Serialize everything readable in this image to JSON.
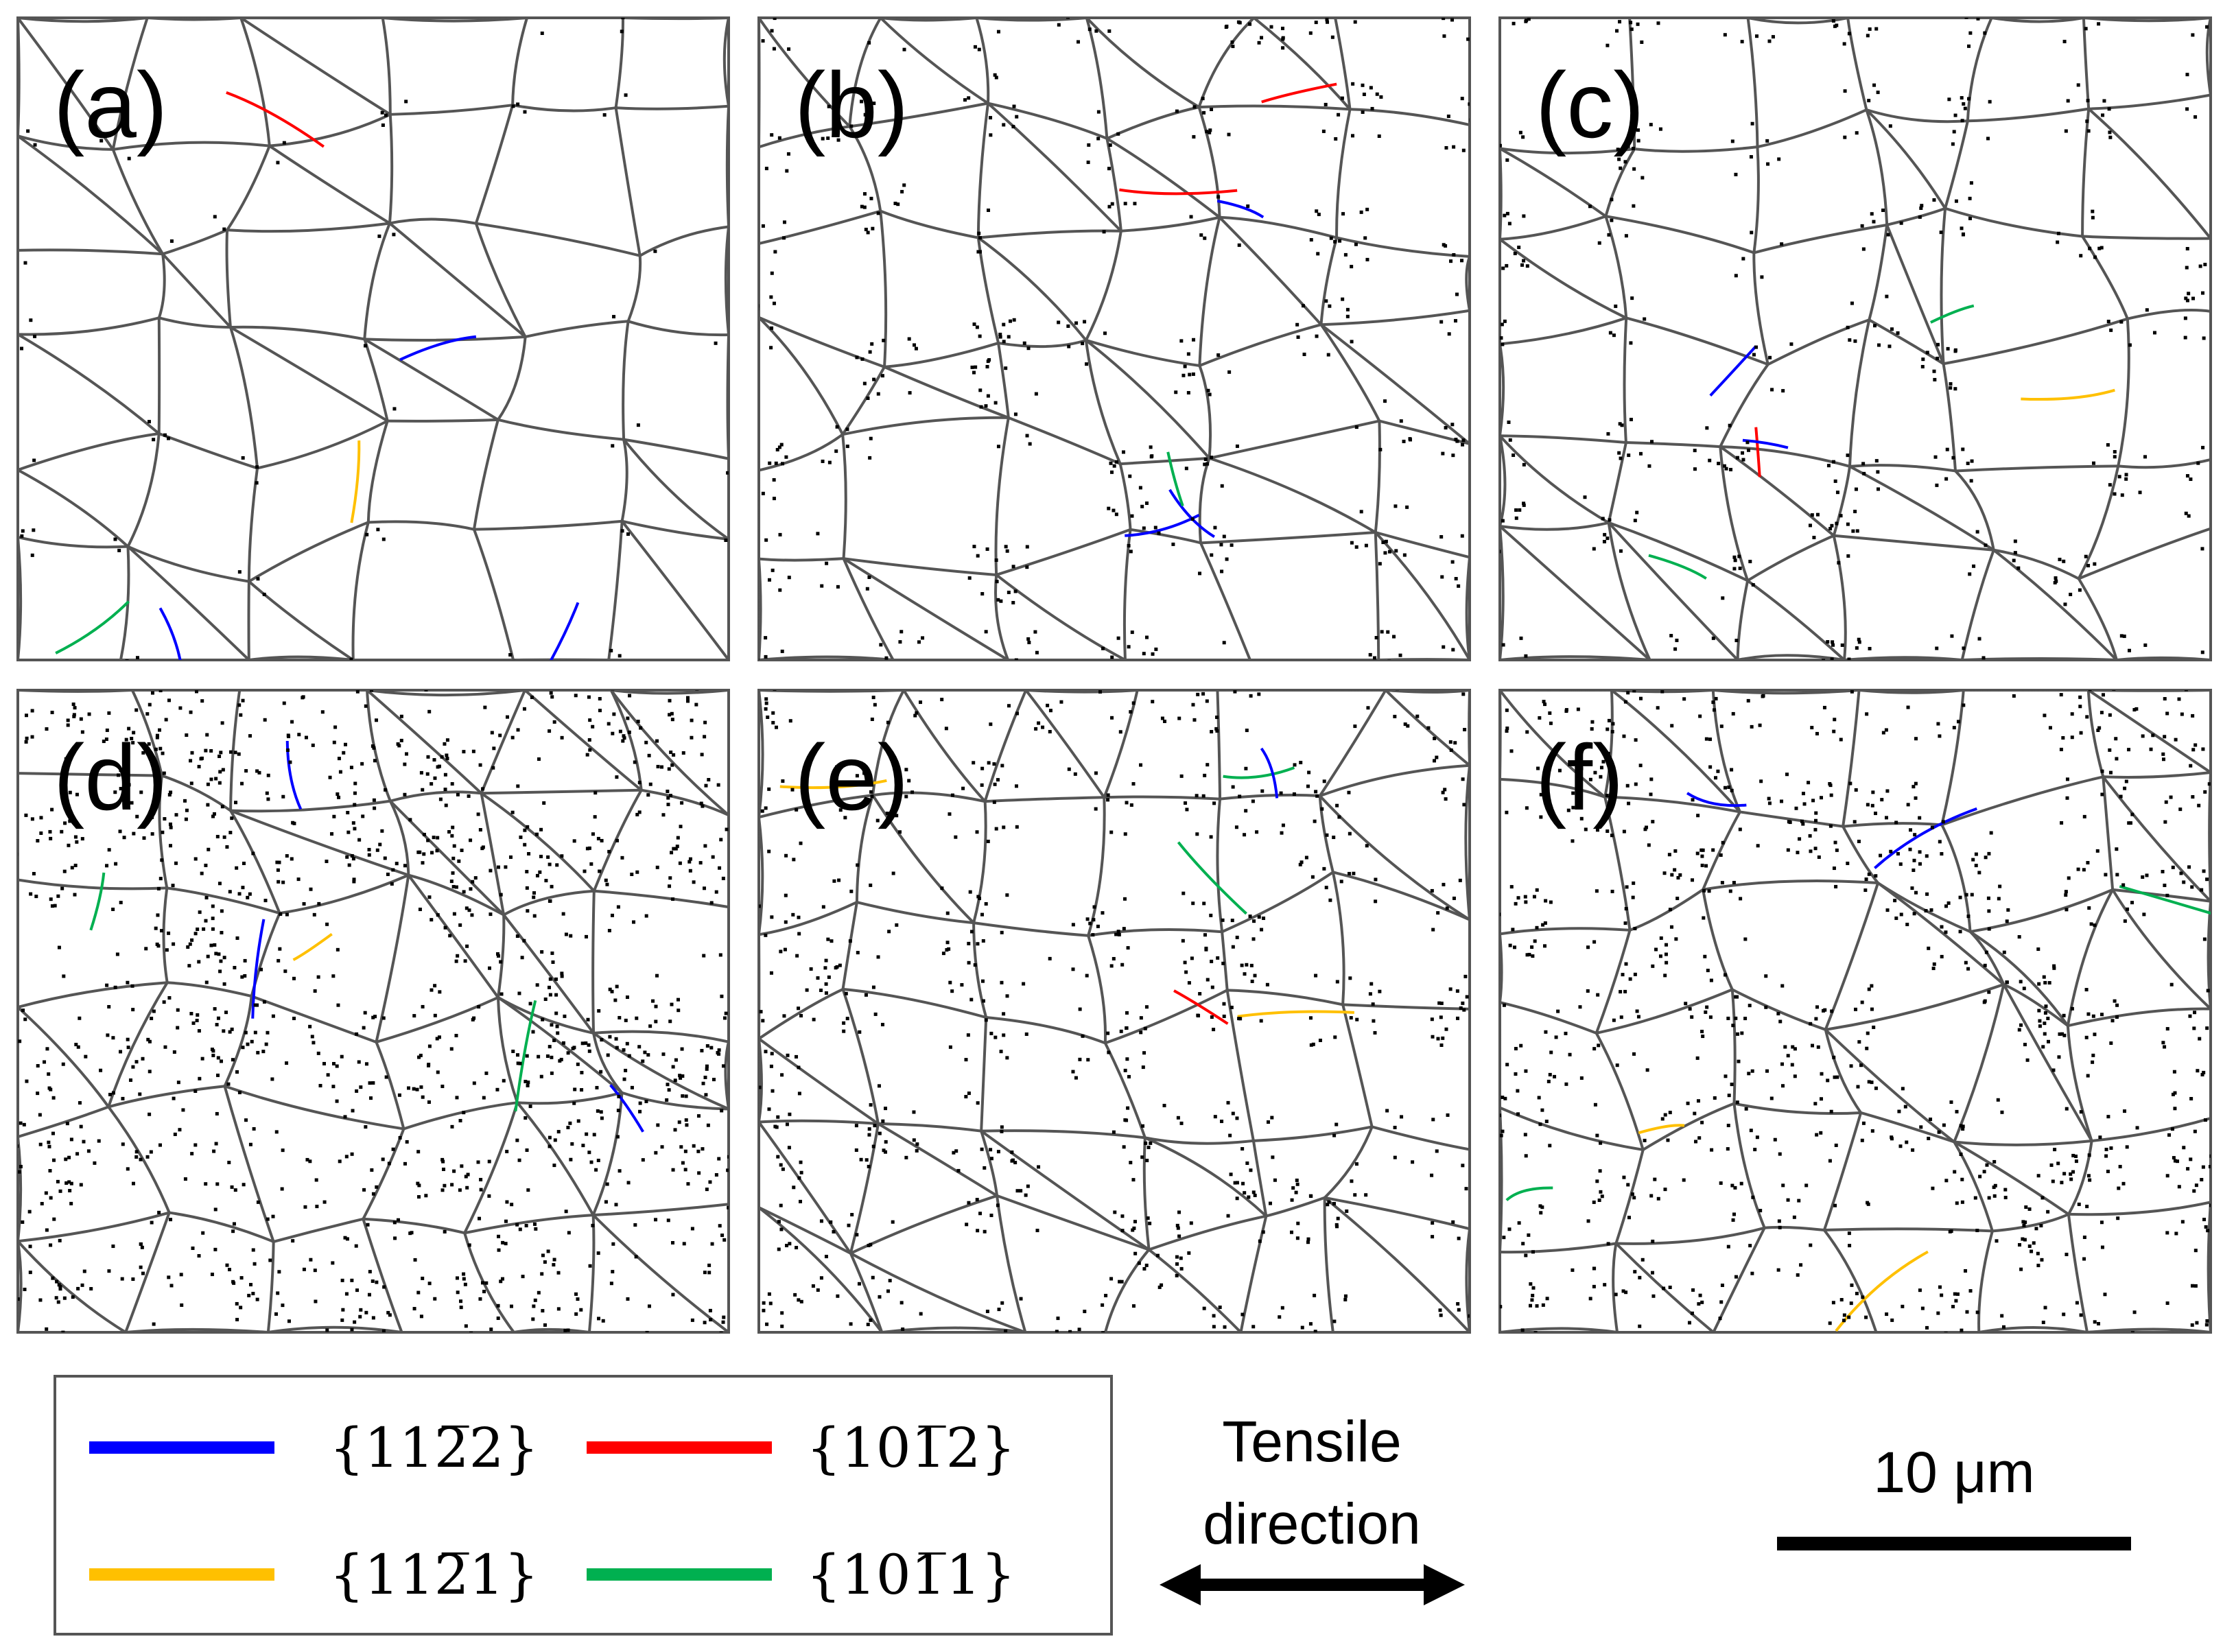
{
  "panels": [
    {
      "label": "(a)"
    },
    {
      "label": "(b)"
    },
    {
      "label": "(c)"
    },
    {
      "label": "(d)"
    },
    {
      "label": "(e)"
    },
    {
      "label": "(f)"
    }
  ],
  "legend": [
    {
      "label": "{112̅2}",
      "color": "#0000ff"
    },
    {
      "label": "{101̅2}",
      "color": "#ff0000"
    },
    {
      "label": "{112̅1}",
      "color": "#ffc000"
    },
    {
      "label": "{101̅1}",
      "color": "#00b050"
    }
  ],
  "direction": {
    "line1": "Tensile",
    "line2": "direction"
  },
  "scalebar": {
    "label": "10 μm"
  },
  "colors": {
    "boundary": "#555555",
    "dots": "#000000"
  }
}
